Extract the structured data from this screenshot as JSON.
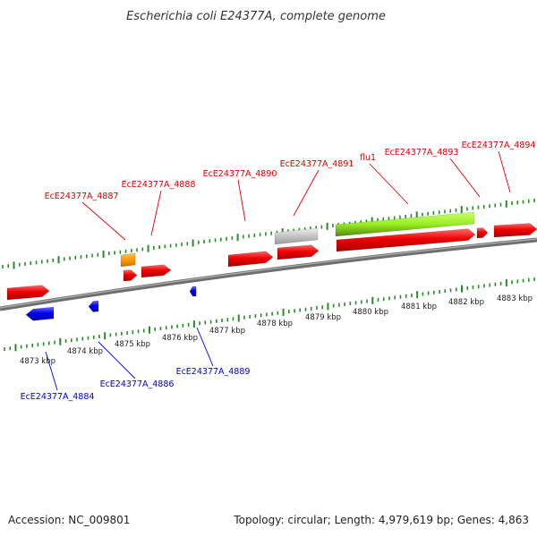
{
  "title": "Escherichia coli E24377A, complete genome",
  "footer": {
    "accession": "Accession: NC_009801",
    "summary": "Topology: circular; Length: 4,979,619 bp; Genes: 4,863"
  },
  "colors": {
    "forward_gene": "#dd0000",
    "reverse_gene": "#0000dd",
    "rna_gene": "#ee8800",
    "pseudo_gene": "#bbbbbb",
    "highlight_gene": "#88dd22",
    "tick": "#2a8a2a",
    "backbone": "#808080"
  },
  "tick_labels": [
    "4873 kbp",
    "4874 kbp",
    "4875 kbp",
    "4876 kbp",
    "4877 kbp",
    "4878 kbp",
    "4879 kbp",
    "4880 kbp",
    "4881 kbp",
    "4882 kbp",
    "4883 kbp"
  ],
  "forward_labels": [
    "EcE24377A_4887",
    "EcE24377A_4888",
    "EcE24377A_4890",
    "EcE24377A_4891",
    "flu1",
    "EcE24377A_4893",
    "EcE24377A_4894"
  ],
  "reverse_labels": [
    "EcE24377A_4884",
    "EcE24377A_4886",
    "EcE24377A_4889"
  ]
}
